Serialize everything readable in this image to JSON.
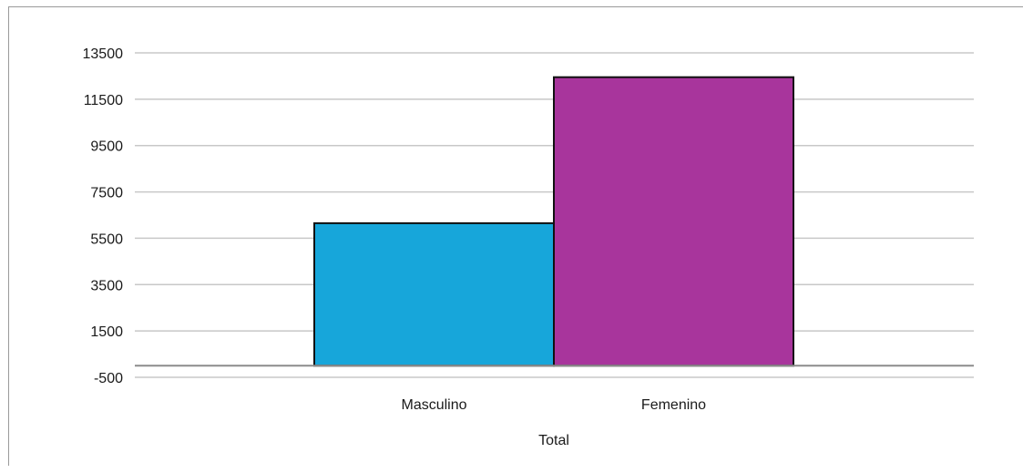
{
  "chart_data": {
    "type": "bar",
    "categories": [
      "Masculino",
      "Femenino"
    ],
    "series": [
      {
        "values": [
          6150,
          12450
        ],
        "colors": [
          "#17a6da",
          "#a8359c"
        ]
      }
    ],
    "xlabel": "Total",
    "ylabel": "",
    "ylim": [
      -500,
      13500
    ],
    "yticks": [
      -500,
      1500,
      3500,
      5500,
      7500,
      9500,
      11500,
      13500
    ],
    "grid": true,
    "legend": "none",
    "bar_edge_color": "#111111",
    "grid_color": "#c8c8c8"
  }
}
